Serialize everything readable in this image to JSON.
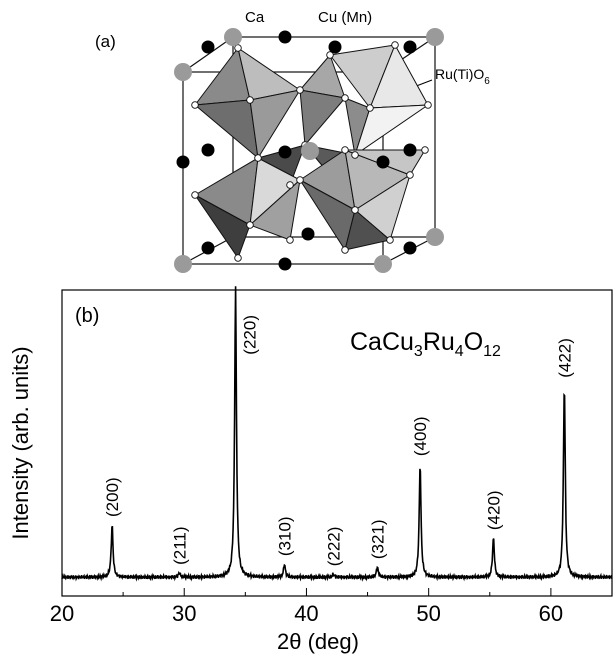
{
  "panel_a": {
    "label": "(a)",
    "atom_labels": {
      "ca": "Ca",
      "cu": "Cu (Mn)",
      "octa_main": "Ru(Ti)O",
      "octa_sub": "6"
    }
  },
  "chart_data": {
    "type": "line",
    "panel_label": "(b)",
    "title": "",
    "formula": {
      "parts": [
        {
          "text": "CaCu",
          "sub": false
        },
        {
          "text": "3",
          "sub": true
        },
        {
          "text": "Ru",
          "sub": false
        },
        {
          "text": "4",
          "sub": true
        },
        {
          "text": "O",
          "sub": false
        },
        {
          "text": "12",
          "sub": true
        }
      ]
    },
    "xlabel": "2θ (deg)",
    "ylabel": "Intensity (arb. units)",
    "xlim": [
      20,
      65
    ],
    "ylim": [
      0,
      1.0
    ],
    "xticks": [
      20,
      30,
      40,
      50,
      60
    ],
    "xtick_labels": [
      "20",
      "30",
      "40",
      "50",
      "60"
    ],
    "baseline": 0.02,
    "grid": false,
    "peaks": [
      {
        "x": 24.1,
        "y": 0.18,
        "label": "(200)"
      },
      {
        "x": 29.6,
        "y": 0.015,
        "label": "(211)"
      },
      {
        "x": 34.2,
        "y": 1.0,
        "label": "(220)"
      },
      {
        "x": 38.2,
        "y": 0.045,
        "label": "(310)"
      },
      {
        "x": 42.2,
        "y": 0.01,
        "label": "(222)"
      },
      {
        "x": 45.8,
        "y": 0.035,
        "label": "(321)"
      },
      {
        "x": 49.3,
        "y": 0.39,
        "label": "(400)"
      },
      {
        "x": 55.3,
        "y": 0.135,
        "label": "(420)"
      },
      {
        "x": 61.1,
        "y": 0.66,
        "label": "(422)"
      }
    ]
  }
}
